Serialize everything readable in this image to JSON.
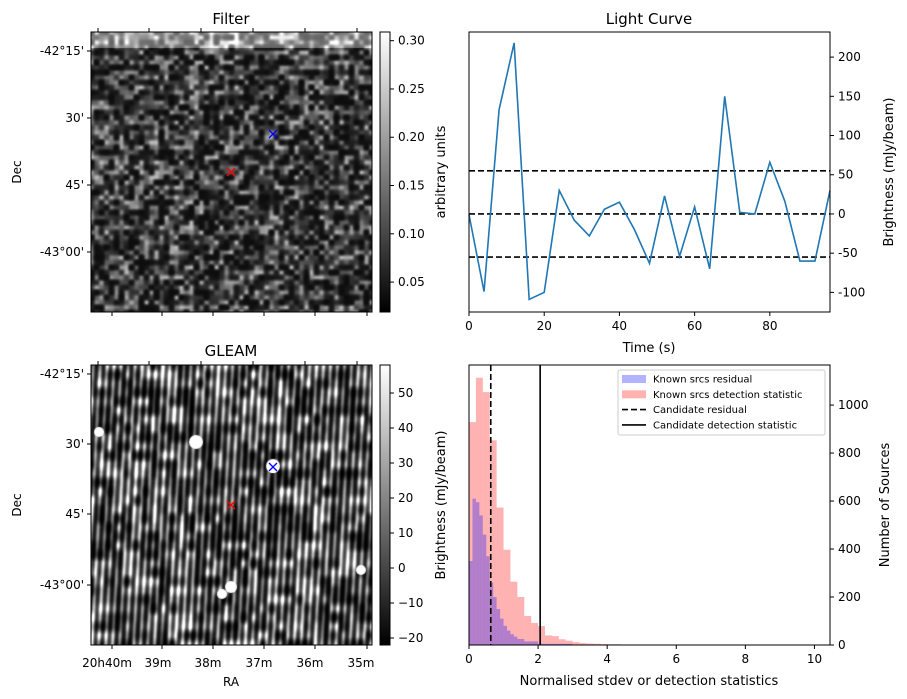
{
  "chart_data": [
    {
      "type": "heatmap",
      "title": "Filter",
      "xlabel": "",
      "ylabel": "Dec",
      "ytick_labels": [
        "-42°15'",
        "30'",
        "45'",
        "-43°00'"
      ],
      "colorbar": {
        "label": "arbitrary units",
        "ticks": [
          "0.05",
          "0.10",
          "0.15",
          "0.20",
          "0.25",
          "0.30"
        ],
        "range": [
          0.019,
          0.309
        ],
        "colormap": "gray"
      },
      "markers": [
        {
          "name": "candidate",
          "symbol": "x",
          "color": "#ff0000"
        },
        {
          "name": "known-source",
          "symbol": "x",
          "color": "#0000ff"
        }
      ]
    },
    {
      "type": "line",
      "title": "Light Curve",
      "xlabel": "Time (s)",
      "ylabel": "Brightness (mJy/beam)",
      "xlim": [
        0,
        96
      ],
      "ylim": [
        -125,
        232
      ],
      "xticks": [
        "0",
        "20",
        "40",
        "60",
        "80"
      ],
      "yticks": [
        "-100",
        "-50",
        "0",
        "50",
        "100",
        "150",
        "200"
      ],
      "x": [
        0,
        4,
        8,
        12,
        16,
        20,
        24,
        28,
        32,
        36,
        40,
        44,
        48,
        52,
        56,
        60,
        64,
        68,
        72,
        76,
        80,
        84,
        88,
        92,
        96
      ],
      "values": [
        -1,
        -99,
        133,
        218,
        -109,
        -100,
        30,
        -8,
        -28,
        6,
        15,
        -20,
        -63,
        23,
        -54,
        9,
        -70,
        150,
        2,
        0,
        66,
        16,
        -60,
        -60,
        30
      ],
      "hlines": [
        55,
        0,
        -55
      ],
      "line_color": "#1f77b4"
    },
    {
      "type": "heatmap",
      "title": "GLEAM",
      "xlabel": "RA",
      "ylabel": "Dec",
      "xtick_labels": [
        "20h40m",
        "39m",
        "38m",
        "37m",
        "36m",
        "35m"
      ],
      "ytick_labels": [
        "-42°15'",
        "30'",
        "45'",
        "-43°00'"
      ],
      "colorbar": {
        "label": "Brightness (mJy/beam)",
        "ticks": [
          "−20",
          "−10",
          "0",
          "10",
          "20",
          "30",
          "40",
          "50"
        ],
        "range": [
          -22,
          58
        ],
        "colormap": "gray"
      },
      "markers": [
        {
          "name": "candidate",
          "symbol": "x",
          "color": "#ff0000"
        },
        {
          "name": "known-source",
          "symbol": "x",
          "color": "#0000ff"
        }
      ]
    },
    {
      "type": "bar",
      "title": "",
      "xlabel": "Normalised stdev or detection statistics",
      "ylabel": "Number of Sources",
      "xlim": [
        0,
        10.45
      ],
      "ylim": [
        0,
        1167
      ],
      "xticks": [
        "0",
        "2",
        "4",
        "6",
        "8",
        "10"
      ],
      "yticks": [
        "0",
        "200",
        "400",
        "600",
        "800",
        "1000"
      ],
      "series": [
        {
          "name": "Known srcs residual",
          "color": "#0000ff",
          "alpha": 0.3,
          "bin_start": 0,
          "bin_width": 0.1,
          "values": [
            350,
            610,
            595,
            540,
            460,
            370,
            260,
            200,
            150,
            110,
            80,
            60,
            45,
            35,
            25,
            25,
            15,
            15,
            15,
            15,
            5,
            5,
            5,
            5,
            5,
            5,
            5,
            5,
            5,
            5
          ]
        },
        {
          "name": "Known srcs detection statistic",
          "color": "#ff0000",
          "alpha": 0.3,
          "bin_start": 0,
          "bin_width": 0.2,
          "values": [
            929,
            1114,
            1054,
            853,
            573,
            397,
            264,
            200,
            121,
            92,
            79,
            40,
            37,
            24,
            18,
            12,
            8,
            6,
            5,
            4,
            3,
            3,
            2,
            2,
            2,
            1,
            1,
            1,
            1,
            1,
            1,
            0,
            0,
            0,
            1,
            0,
            0,
            1,
            0,
            0,
            1,
            0,
            0,
            0,
            1,
            0,
            0,
            0,
            0,
            1
          ]
        }
      ],
      "vlines": [
        {
          "name": "Candidate residual",
          "value": 0.63,
          "style": "dashed"
        },
        {
          "name": "Candidate detection statistic",
          "value": 2.06,
          "style": "solid"
        }
      ],
      "legend": "top-right"
    }
  ]
}
